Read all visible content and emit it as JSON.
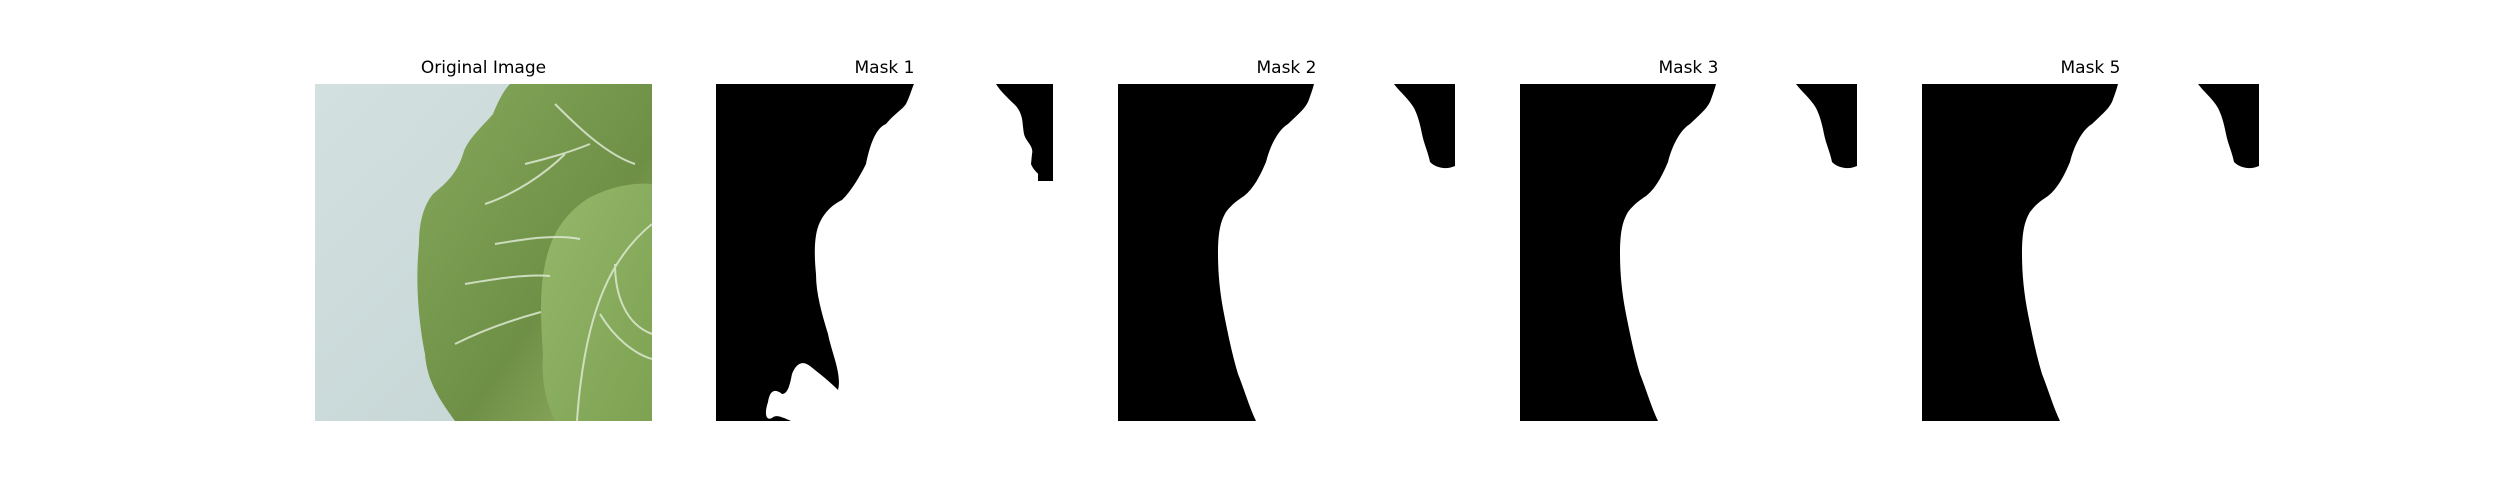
{
  "panels": [
    {
      "title": "Original Image"
    },
    {
      "title": "Mask 1"
    },
    {
      "title": "Mask 2"
    },
    {
      "title": "Mask 3"
    },
    {
      "title": "Mask 5"
    }
  ],
  "colors": {
    "background_wall": "#c9dada",
    "leaf_dark": "#6f9245",
    "leaf_light": "#8fb264",
    "vein": "#d8e6cf",
    "mask_foreground": "#ffffff",
    "mask_background": "#000000"
  }
}
